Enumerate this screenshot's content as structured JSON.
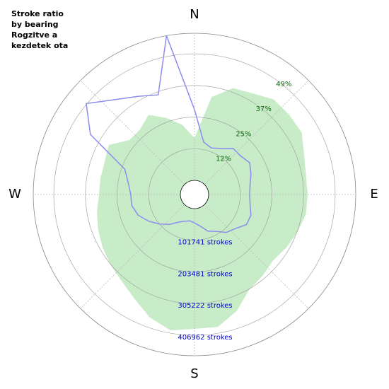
{
  "chart_data": {
    "type": "polar",
    "title": [
      "Stroke ratio",
      "by bearing",
      "Rogzitve a",
      "kezdetek ota"
    ],
    "x": [
      0,
      10,
      20,
      30,
      40,
      50,
      60,
      70,
      80,
      90,
      100,
      110,
      120,
      130,
      140,
      150,
      160,
      170,
      180,
      190,
      200,
      210,
      220,
      230,
      240,
      250,
      260,
      270,
      280,
      290,
      300,
      310,
      320,
      330,
      340,
      350
    ],
    "xticks": [
      {
        "value": 0,
        "label": "N"
      },
      {
        "value": 90,
        "label": "E"
      },
      {
        "value": 180,
        "label": "S"
      },
      {
        "value": 270,
        "label": "W"
      }
    ],
    "ylim": [
      0,
      473000
    ],
    "yticks": [
      {
        "value": 101741,
        "label": "101741 strokes"
      },
      {
        "value": 203481,
        "label": "203481 strokes"
      },
      {
        "value": 305222,
        "label": "305222 strokes"
      },
      {
        "value": 406962,
        "label": "406962 strokes"
      }
    ],
    "y2lim": [
      0,
      57
    ],
    "y2ticks": [
      {
        "value": 12.4,
        "label": "12%"
      },
      {
        "value": 24.7,
        "label": "25%"
      },
      {
        "value": 37.1,
        "label": "37%"
      },
      {
        "value": 49.5,
        "label": "49%"
      }
    ],
    "series": [
      {
        "color": "#c8ecc8",
        "values": [
          136400,
          272900,
          318400,
          329700,
          352500,
          352500,
          352500,
          329700,
          318400,
          318400,
          318400,
          307000,
          295600,
          284300,
          295600,
          307000,
          352500,
          386600,
          386600,
          398000,
          375200,
          341100,
          318400,
          307000,
          295600,
          284300,
          272900,
          261500,
          261500,
          261500,
          272900,
          227400,
          227400,
          250100,
          216000,
          181900
        ]
      },
      {
        "color": "#8c8cf0",
        "axis": "y2",
        "values": [
          27.4,
          15.1,
          13.7,
          15.1,
          17.8,
          17.8,
          19.2,
          17.8,
          16.4,
          15.9,
          16.4,
          17.8,
          17.8,
          15.1,
          13.7,
          11.0,
          9.6,
          6.9,
          5.5,
          4.9,
          5.5,
          6.9,
          9.6,
          12.3,
          15.1,
          17.8,
          19.2,
          19.2,
          20.6,
          23.3,
          41.1,
          49.3,
          42.5,
          38.4,
          35.6,
          57.0
        ]
      }
    ]
  }
}
